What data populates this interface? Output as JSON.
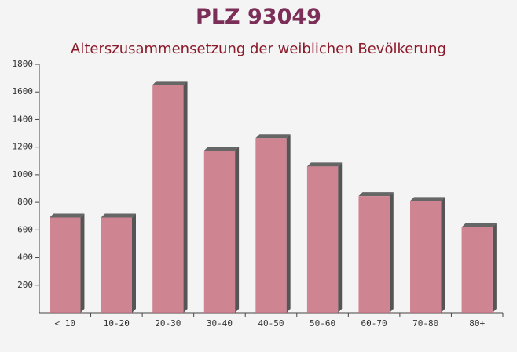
{
  "chart_data": {
    "type": "bar",
    "title": "PLZ 93049",
    "subtitle": "Alterszusammensetzung der weiblichen Bevölkerung",
    "categories": [
      "< 10",
      "10-20",
      "20-30",
      "30-40",
      "40-50",
      "50-60",
      "60-70",
      "70-80",
      "80+"
    ],
    "values": [
      690,
      690,
      1650,
      1175,
      1265,
      1060,
      845,
      810,
      620
    ],
    "color": "#c7707f",
    "ylim": [
      0,
      1800
    ],
    "yticks": [
      200,
      400,
      600,
      800,
      1000,
      1200,
      1400,
      1600,
      1800
    ]
  }
}
